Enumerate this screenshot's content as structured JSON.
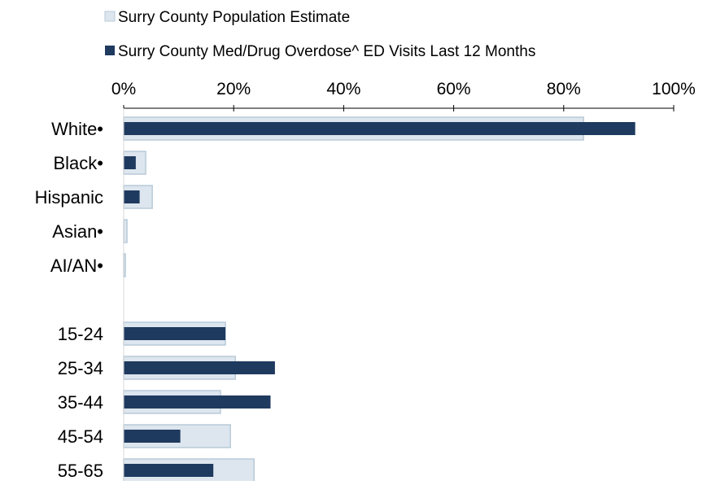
{
  "chart_data": {
    "type": "bar",
    "orientation": "horizontal",
    "title": "",
    "xlabel": "",
    "ylabel": "",
    "xlim": [
      0,
      100
    ],
    "x_ticks": [
      0,
      20,
      40,
      60,
      80,
      100
    ],
    "x_tick_labels": [
      "0%",
      "20%",
      "40%",
      "60%",
      "80%",
      "100%"
    ],
    "x_axis_position": "top",
    "grid": false,
    "legend_position": "top",
    "categories": [
      "White•",
      "Black•",
      "Hispanic",
      "Asian•",
      "AI/AN•",
      "",
      "15-24",
      "25-34",
      "35-44",
      "45-54",
      "55-65"
    ],
    "series": [
      {
        "name": "Surry County Population Estimate",
        "color": "#dde6ee",
        "border_color": "#b8cad8",
        "values": [
          83.6,
          4.0,
          5.2,
          0.6,
          0.3,
          null,
          18.5,
          20.3,
          17.6,
          19.4,
          23.7
        ]
      },
      {
        "name": "Surry County Med/Drug Overdose^ ED Visits Last 12 Months",
        "color": "#1f3a5f",
        "values": [
          93.0,
          2.2,
          2.9,
          0,
          0,
          null,
          18.5,
          27.5,
          26.7,
          10.3,
          16.3
        ]
      }
    ]
  }
}
